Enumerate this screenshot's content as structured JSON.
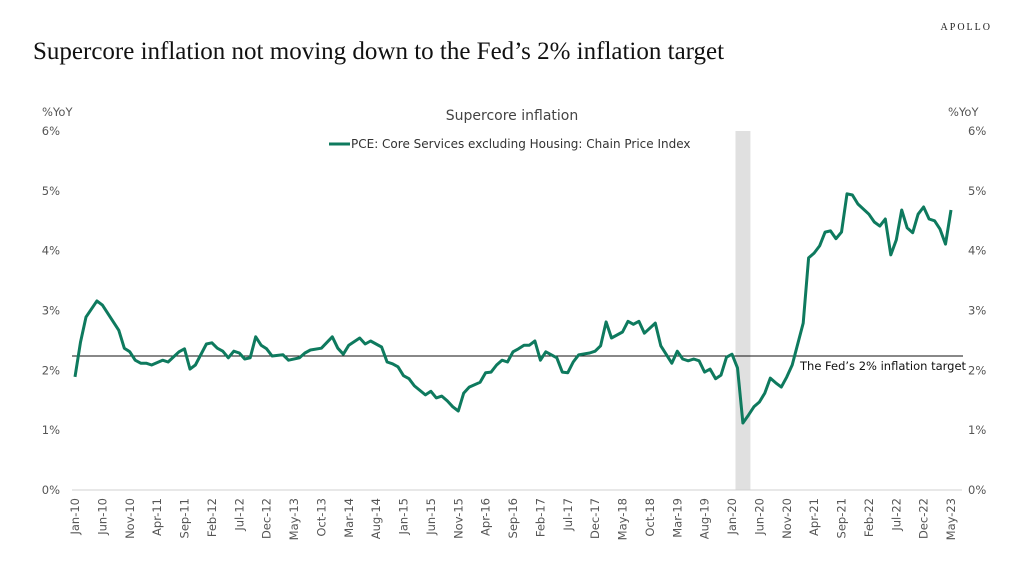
{
  "header": {
    "title": "Supercore inflation not moving down to the Fed’s 2% inflation target",
    "logo": "APOLLO"
  },
  "chart_data": {
    "type": "line",
    "title": "Supercore inflation",
    "ylabel_left": "%YoY",
    "ylabel_right": "%YoY",
    "ylim": [
      0,
      6
    ],
    "yticks": [
      "0%",
      "1%",
      "2%",
      "3%",
      "4%",
      "5%",
      "6%"
    ],
    "xticks": [
      "Jan-10",
      "Jun-10",
      "Nov-10",
      "Apr-11",
      "Sep-11",
      "Feb-12",
      "Jul-12",
      "Dec-12",
      "May-13",
      "Oct-13",
      "Mar-14",
      "Aug-14",
      "Jan-15",
      "Jun-15",
      "Nov-15",
      "Apr-16",
      "Sep-16",
      "Feb-17",
      "Jul-17",
      "Dec-17",
      "May-18",
      "Oct-18",
      "Mar-19",
      "Aug-19",
      "Jan-20",
      "Jun-20",
      "Nov-20",
      "Apr-21",
      "Sep-21",
      "Feb-22",
      "Jul-22",
      "Dec-22",
      "May-23"
    ],
    "grid": false,
    "legend_position": "top-center",
    "line_color": "#0e7a5e",
    "recession_shading": {
      "start": "2020-02",
      "end": "2020-04",
      "color": "#e0e0e0"
    },
    "target_line": {
      "label": "The Fed’s 2% inflation target",
      "value": 2.24
    },
    "series": [
      {
        "name": "PCE: Core Services excluding Housing: Chain Price Index",
        "points": [
          [
            "2010-01",
            1.89
          ],
          [
            "2010-02",
            2.47
          ],
          [
            "2010-03",
            2.89
          ],
          [
            "2010-05",
            3.16
          ],
          [
            "2010-06",
            3.09
          ],
          [
            "2010-09",
            2.67
          ],
          [
            "2010-10",
            2.37
          ],
          [
            "2010-11",
            2.31
          ],
          [
            "2010-12",
            2.17
          ],
          [
            "2011-01",
            2.12
          ],
          [
            "2011-02",
            2.12
          ],
          [
            "2011-03",
            2.09
          ],
          [
            "2011-05",
            2.17
          ],
          [
            "2011-06",
            2.14
          ],
          [
            "2011-08",
            2.31
          ],
          [
            "2011-09",
            2.36
          ],
          [
            "2011-10",
            2.02
          ],
          [
            "2011-11",
            2.09
          ],
          [
            "2012-01",
            2.44
          ],
          [
            "2012-02",
            2.46
          ],
          [
            "2012-03",
            2.37
          ],
          [
            "2012-04",
            2.32
          ],
          [
            "2012-05",
            2.21
          ],
          [
            "2012-06",
            2.32
          ],
          [
            "2012-07",
            2.29
          ],
          [
            "2012-08",
            2.19
          ],
          [
            "2012-09",
            2.21
          ],
          [
            "2012-10",
            2.56
          ],
          [
            "2012-11",
            2.42
          ],
          [
            "2012-12",
            2.36
          ],
          [
            "2013-01",
            2.24
          ],
          [
            "2013-03",
            2.26
          ],
          [
            "2013-04",
            2.17
          ],
          [
            "2013-06",
            2.21
          ],
          [
            "2013-07",
            2.29
          ],
          [
            "2013-08",
            2.34
          ],
          [
            "2013-10",
            2.37
          ],
          [
            "2013-12",
            2.56
          ],
          [
            "2014-01",
            2.37
          ],
          [
            "2014-02",
            2.27
          ],
          [
            "2014-03",
            2.42
          ],
          [
            "2014-05",
            2.54
          ],
          [
            "2014-06",
            2.44
          ],
          [
            "2014-07",
            2.49
          ],
          [
            "2014-09",
            2.39
          ],
          [
            "2014-10",
            2.14
          ],
          [
            "2014-11",
            2.11
          ],
          [
            "2014-12",
            2.06
          ],
          [
            "2015-01",
            1.91
          ],
          [
            "2015-02",
            1.86
          ],
          [
            "2015-03",
            1.74
          ],
          [
            "2015-05",
            1.59
          ],
          [
            "2015-06",
            1.65
          ],
          [
            "2015-07",
            1.54
          ],
          [
            "2015-08",
            1.57
          ],
          [
            "2015-09",
            1.49
          ],
          [
            "2015-10",
            1.39
          ],
          [
            "2015-11",
            1.32
          ],
          [
            "2015-12",
            1.62
          ],
          [
            "2016-01",
            1.72
          ],
          [
            "2016-03",
            1.8
          ],
          [
            "2016-04",
            1.96
          ],
          [
            "2016-05",
            1.97
          ],
          [
            "2016-06",
            2.09
          ],
          [
            "2016-07",
            2.17
          ],
          [
            "2016-08",
            2.14
          ],
          [
            "2016-09",
            2.31
          ],
          [
            "2016-10",
            2.36
          ],
          [
            "2016-11",
            2.42
          ],
          [
            "2016-12",
            2.42
          ],
          [
            "2017-01",
            2.49
          ],
          [
            "2017-02",
            2.17
          ],
          [
            "2017-03",
            2.31
          ],
          [
            "2017-05",
            2.21
          ],
          [
            "2017-06",
            1.97
          ],
          [
            "2017-07",
            1.96
          ],
          [
            "2017-08",
            2.14
          ],
          [
            "2017-09",
            2.26
          ],
          [
            "2017-11",
            2.29
          ],
          [
            "2017-12",
            2.32
          ],
          [
            "2018-01",
            2.41
          ],
          [
            "2018-02",
            2.81
          ],
          [
            "2018-03",
            2.54
          ],
          [
            "2018-05",
            2.64
          ],
          [
            "2018-06",
            2.82
          ],
          [
            "2018-07",
            2.77
          ],
          [
            "2018-08",
            2.82
          ],
          [
            "2018-09",
            2.62
          ],
          [
            "2018-11",
            2.79
          ],
          [
            "2018-12",
            2.41
          ],
          [
            "2019-02",
            2.12
          ],
          [
            "2019-03",
            2.32
          ],
          [
            "2019-04",
            2.19
          ],
          [
            "2019-05",
            2.16
          ],
          [
            "2019-06",
            2.19
          ],
          [
            "2019-07",
            2.16
          ],
          [
            "2019-08",
            1.97
          ],
          [
            "2019-09",
            2.02
          ],
          [
            "2019-10",
            1.86
          ],
          [
            "2019-11",
            1.92
          ],
          [
            "2019-12",
            2.22
          ],
          [
            "2020-01",
            2.27
          ],
          [
            "2020-02",
            2.04
          ],
          [
            "2020-03",
            1.12
          ],
          [
            "2020-04",
            1.25
          ],
          [
            "2020-05",
            1.39
          ],
          [
            "2020-06",
            1.47
          ],
          [
            "2020-07",
            1.62
          ],
          [
            "2020-08",
            1.87
          ],
          [
            "2020-09",
            1.79
          ],
          [
            "2020-10",
            1.72
          ],
          [
            "2020-11",
            1.89
          ],
          [
            "2020-12",
            2.09
          ],
          [
            "2021-02",
            2.79
          ],
          [
            "2021-03",
            3.88
          ],
          [
            "2021-04",
            3.96
          ],
          [
            "2021-05",
            4.08
          ],
          [
            "2021-06",
            4.31
          ],
          [
            "2021-07",
            4.33
          ],
          [
            "2021-08",
            4.2
          ],
          [
            "2021-09",
            4.31
          ],
          [
            "2021-10",
            4.95
          ],
          [
            "2021-11",
            4.93
          ],
          [
            "2021-12",
            4.78
          ],
          [
            "2022-02",
            4.61
          ],
          [
            "2022-03",
            4.48
          ],
          [
            "2022-04",
            4.41
          ],
          [
            "2022-05",
            4.53
          ],
          [
            "2022-06",
            3.93
          ],
          [
            "2022-07",
            4.18
          ],
          [
            "2022-08",
            4.68
          ],
          [
            "2022-09",
            4.38
          ],
          [
            "2022-10",
            4.3
          ],
          [
            "2022-11",
            4.61
          ],
          [
            "2022-12",
            4.73
          ],
          [
            "2023-01",
            4.53
          ],
          [
            "2023-02",
            4.5
          ],
          [
            "2023-03",
            4.36
          ],
          [
            "2023-04",
            4.11
          ],
          [
            "2023-05",
            4.68
          ]
        ]
      }
    ]
  }
}
